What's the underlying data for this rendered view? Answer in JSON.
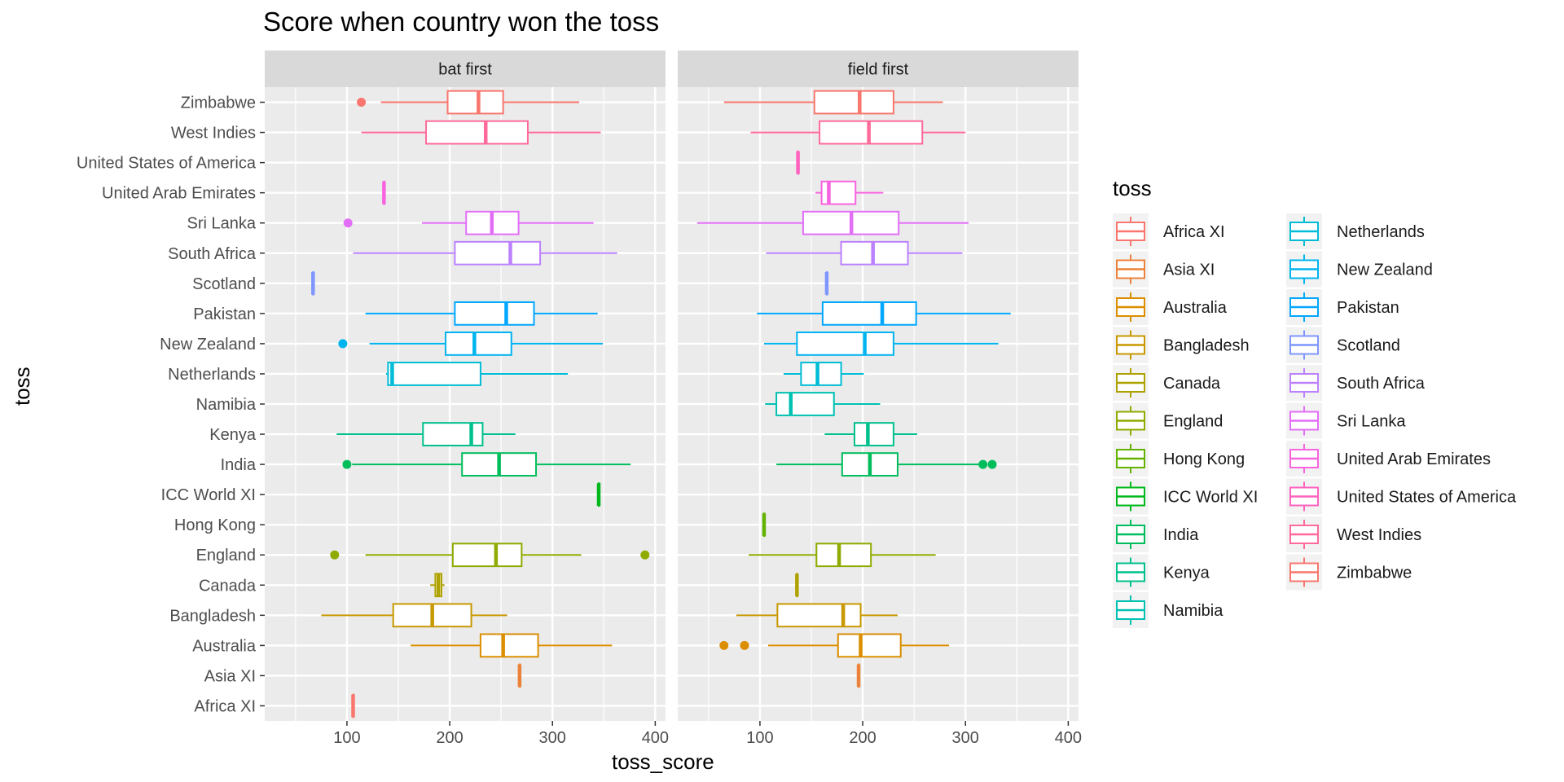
{
  "chart_data": {
    "type": "boxplot",
    "title": "Score when country won the toss",
    "xlabel": "toss_score",
    "ylabel": "toss",
    "xlim": [
      20,
      410
    ],
    "x_ticks": [
      100,
      200,
      300,
      400
    ],
    "facets": [
      "bat first",
      "field first"
    ],
    "categories": [
      "Africa XI",
      "Asia XI",
      "Australia",
      "Bangladesh",
      "Canada",
      "England",
      "Hong Kong",
      "ICC World XI",
      "India",
      "Kenya",
      "Namibia",
      "Netherlands",
      "New Zealand",
      "Pakistan",
      "Scotland",
      "South Africa",
      "Sri Lanka",
      "United Arab Emirates",
      "United States of America",
      "West Indies",
      "Zimbabwe"
    ],
    "legend": {
      "title": "toss",
      "items": [
        "Africa XI",
        "Asia XI",
        "Australia",
        "Bangladesh",
        "Canada",
        "England",
        "Hong Kong",
        "ICC World XI",
        "India",
        "Kenya",
        "Namibia",
        "Netherlands",
        "New Zealand",
        "Pakistan",
        "Scotland",
        "South Africa",
        "Sri Lanka",
        "United Arab Emirates",
        "United States of America",
        "West Indies",
        "Zimbabwe"
      ],
      "placement": "right"
    },
    "colors": [
      "#F8766D",
      "#EC8239",
      "#DB8E00",
      "#C79800",
      "#AEA200",
      "#8FAA00",
      "#64B200",
      "#00B81B",
      "#00BD5C",
      "#00C08D",
      "#00C1B2",
      "#00BCD6",
      "#00B4EF",
      "#00A7FF",
      "#7F96FF",
      "#BC81FF",
      "#E26EF7",
      "#F863DF",
      "#FF62BF",
      "#FF6A9A",
      "#F8766D"
    ],
    "series": [
      {
        "name": "bat first",
        "boxes": [
          {
            "min": 106,
            "q1": 106,
            "median": 106,
            "q3": 106,
            "max": 106,
            "outliers": []
          },
          {
            "min": 268,
            "q1": 268,
            "median": 268,
            "q3": 268,
            "max": 268,
            "outliers": []
          },
          {
            "min": 162,
            "q1": 230,
            "median": 252,
            "q3": 286,
            "max": 358,
            "outliers": []
          },
          {
            "min": 75,
            "q1": 145,
            "median": 183,
            "q3": 221,
            "max": 256,
            "outliers": []
          },
          {
            "min": 181,
            "q1": 186,
            "median": 189,
            "q3": 192,
            "max": 195,
            "outliers": []
          },
          {
            "min": 118,
            "q1": 203,
            "median": 245,
            "q3": 270,
            "max": 328,
            "outliers": [
              88,
              390
            ]
          },
          null,
          {
            "min": 345,
            "q1": 345,
            "median": 345,
            "q3": 345,
            "max": 345,
            "outliers": []
          },
          {
            "min": 105,
            "q1": 212,
            "median": 248,
            "q3": 284,
            "max": 376,
            "outliers": [
              100
            ]
          },
          {
            "min": 90,
            "q1": 174,
            "median": 221,
            "q3": 232,
            "max": 264,
            "outliers": []
          },
          null,
          {
            "min": 138,
            "q1": 140,
            "median": 144,
            "q3": 230,
            "max": 315,
            "outliers": []
          },
          {
            "min": 122,
            "q1": 196,
            "median": 224,
            "q3": 260,
            "max": 349,
            "outliers": [
              96
            ]
          },
          {
            "min": 118,
            "q1": 205,
            "median": 255,
            "q3": 282,
            "max": 344,
            "outliers": []
          },
          {
            "min": 67,
            "q1": 67,
            "median": 67,
            "q3": 67,
            "max": 67,
            "outliers": []
          },
          {
            "min": 106,
            "q1": 205,
            "median": 259,
            "q3": 288,
            "max": 363,
            "outliers": []
          },
          {
            "min": 173,
            "q1": 216,
            "median": 241,
            "q3": 267,
            "max": 340,
            "outliers": [
              101
            ]
          },
          {
            "min": 136,
            "q1": 136,
            "median": 136,
            "q3": 136,
            "max": 136,
            "outliers": []
          },
          null,
          {
            "min": 114,
            "q1": 177,
            "median": 235,
            "q3": 276,
            "max": 347,
            "outliers": []
          },
          {
            "min": 133,
            "q1": 198,
            "median": 228,
            "q3": 252,
            "max": 326,
            "outliers": [
              114
            ]
          }
        ]
      },
      {
        "name": "field first",
        "boxes": [
          null,
          {
            "min": 196,
            "q1": 196,
            "median": 196,
            "q3": 196,
            "max": 196,
            "outliers": []
          },
          {
            "min": 108,
            "q1": 176,
            "median": 198,
            "q3": 237,
            "max": 284,
            "outliers": [
              65,
              85
            ]
          },
          {
            "min": 77,
            "q1": 117,
            "median": 181,
            "q3": 198,
            "max": 234,
            "outliers": []
          },
          {
            "min": 136,
            "q1": 136,
            "median": 136,
            "q3": 136,
            "max": 136,
            "outliers": []
          },
          {
            "min": 89,
            "q1": 155,
            "median": 177,
            "q3": 208,
            "max": 271,
            "outliers": []
          },
          {
            "min": 104,
            "q1": 104,
            "median": 104,
            "q3": 104,
            "max": 104,
            "outliers": []
          },
          null,
          {
            "min": 116,
            "q1": 180,
            "median": 207,
            "q3": 234,
            "max": 315,
            "outliers": [
              317,
              326
            ]
          },
          {
            "min": 163,
            "q1": 192,
            "median": 205,
            "q3": 230,
            "max": 253,
            "outliers": []
          },
          {
            "min": 105,
            "q1": 116,
            "median": 130,
            "q3": 172,
            "max": 217,
            "outliers": []
          },
          {
            "min": 123,
            "q1": 140,
            "median": 156,
            "q3": 179,
            "max": 201,
            "outliers": []
          },
          {
            "min": 104,
            "q1": 136,
            "median": 202,
            "q3": 230,
            "max": 332,
            "outliers": []
          },
          {
            "min": 97,
            "q1": 161,
            "median": 219,
            "q3": 252,
            "max": 344,
            "outliers": []
          },
          {
            "min": 165,
            "q1": 165,
            "median": 165,
            "q3": 165,
            "max": 165,
            "outliers": []
          },
          {
            "min": 106,
            "q1": 179,
            "median": 210,
            "q3": 244,
            "max": 297,
            "outliers": []
          },
          {
            "min": 39,
            "q1": 142,
            "median": 189,
            "q3": 235,
            "max": 303,
            "outliers": []
          },
          {
            "min": 154,
            "q1": 160,
            "median": 167,
            "q3": 193,
            "max": 220,
            "outliers": []
          },
          {
            "min": 137,
            "q1": 137,
            "median": 137,
            "q3": 137,
            "max": 137,
            "outliers": []
          },
          {
            "min": 91,
            "q1": 158,
            "median": 206,
            "q3": 258,
            "max": 300,
            "outliers": []
          },
          {
            "min": 65,
            "q1": 153,
            "median": 197,
            "q3": 230,
            "max": 278,
            "outliers": []
          }
        ]
      }
    ]
  }
}
